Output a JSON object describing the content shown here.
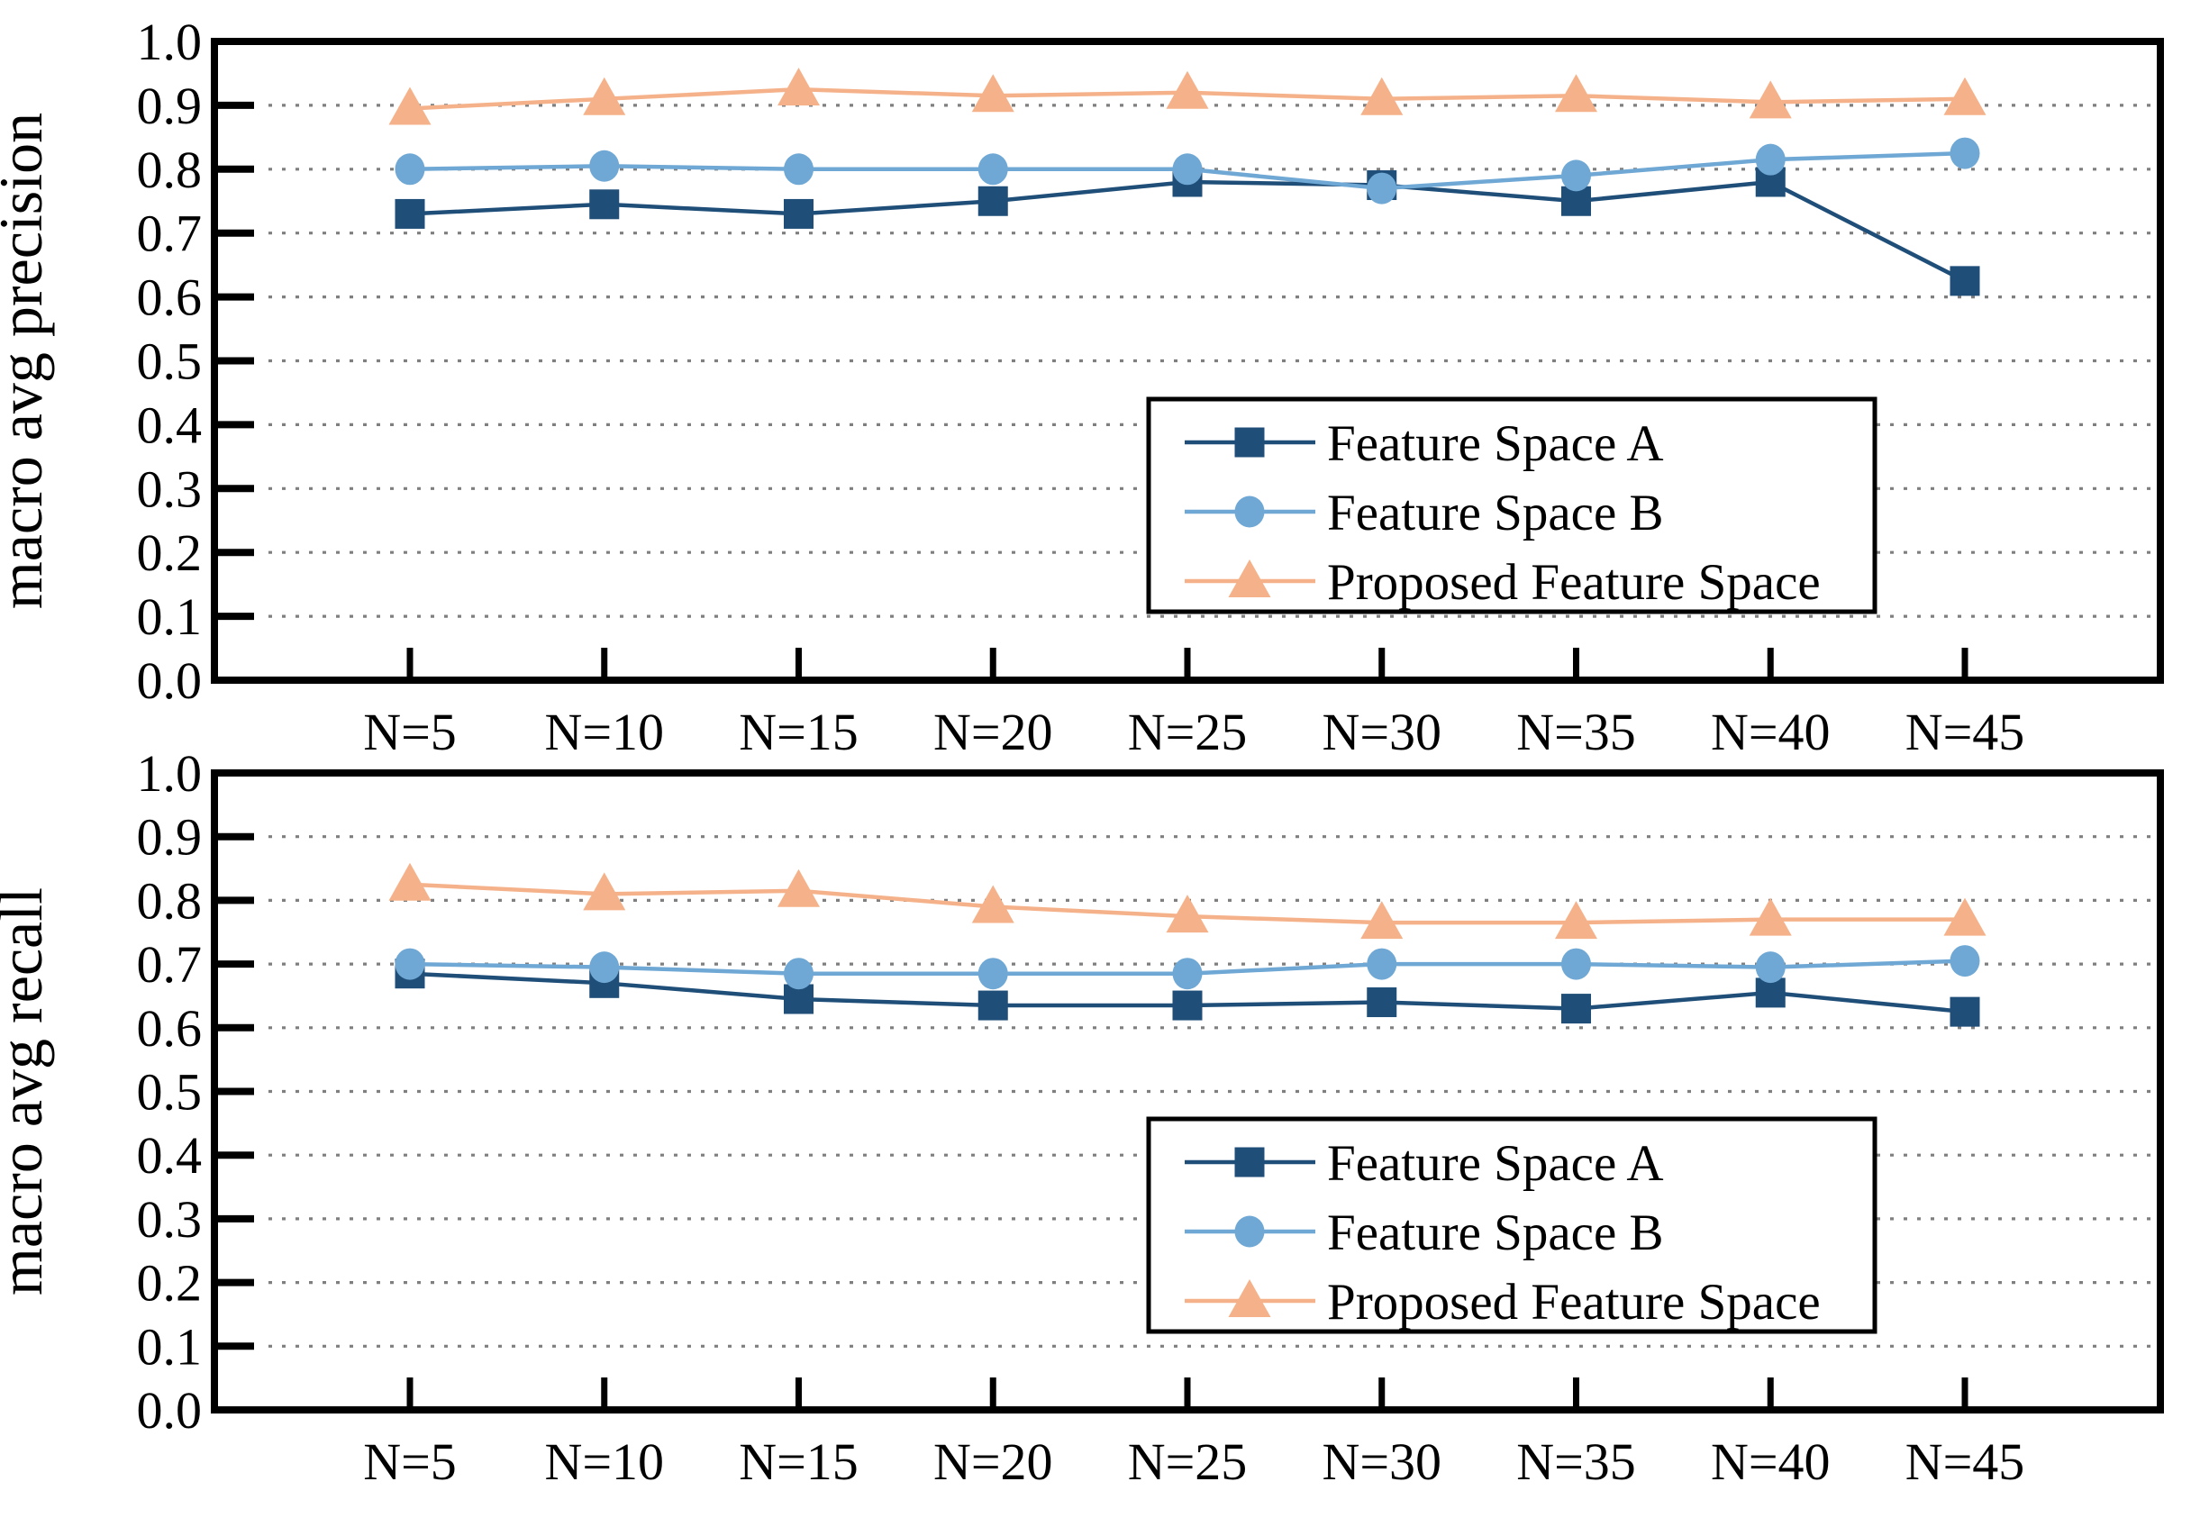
{
  "figure": {
    "background": "#ffffff",
    "grid_color": "#7f7f7f",
    "axis_color": "#000000"
  },
  "chart_data": [
    {
      "type": "line",
      "title": "",
      "xlabel": "",
      "ylabel": "macro avg precision",
      "categories": [
        "N=5",
        "N=10",
        "N=15",
        "N=20",
        "N=25",
        "N=30",
        "N=35",
        "N=40",
        "N=45"
      ],
      "ylim": [
        0.0,
        1.0
      ],
      "ytick_step": 0.1,
      "ytick_labels": [
        "0.0",
        "0.1",
        "0.2",
        "0.3",
        "0.4",
        "0.5",
        "0.6",
        "0.7",
        "0.8",
        "0.9",
        "1.0"
      ],
      "grid": "horizontal-dotted",
      "legend_position": "inside-lower-right",
      "series": [
        {
          "name": "Feature Space A",
          "marker": "square",
          "color": "#1F4E79",
          "values": [
            0.73,
            0.745,
            0.73,
            0.75,
            0.78,
            0.775,
            0.75,
            0.78,
            0.625
          ]
        },
        {
          "name": "Feature Space B",
          "marker": "circle",
          "color": "#6FA8D4",
          "values": [
            0.8,
            0.805,
            0.8,
            0.8,
            0.8,
            0.77,
            0.79,
            0.815,
            0.825
          ]
        },
        {
          "name": "Proposed Feature Space",
          "marker": "triangle",
          "color": "#F5B28A",
          "values": [
            0.895,
            0.91,
            0.925,
            0.915,
            0.92,
            0.91,
            0.915,
            0.905,
            0.91
          ]
        }
      ]
    },
    {
      "type": "line",
      "title": "",
      "xlabel": "",
      "ylabel": "macro avg recall",
      "categories": [
        "N=5",
        "N=10",
        "N=15",
        "N=20",
        "N=25",
        "N=30",
        "N=35",
        "N=40",
        "N=45"
      ],
      "ylim": [
        0.0,
        1.0
      ],
      "ytick_step": 0.1,
      "ytick_labels": [
        "0.0",
        "0.1",
        "0.2",
        "0.3",
        "0.4",
        "0.5",
        "0.6",
        "0.7",
        "0.8",
        "0.9",
        "1.0"
      ],
      "grid": "horizontal-dotted",
      "legend_position": "inside-lower-right",
      "series": [
        {
          "name": "Feature Space A",
          "marker": "square",
          "color": "#1F4E79",
          "values": [
            0.685,
            0.67,
            0.645,
            0.635,
            0.635,
            0.64,
            0.63,
            0.655,
            0.625
          ]
        },
        {
          "name": "Feature Space B",
          "marker": "circle",
          "color": "#6FA8D4",
          "values": [
            0.7,
            0.695,
            0.685,
            0.685,
            0.685,
            0.7,
            0.7,
            0.695,
            0.705
          ]
        },
        {
          "name": "Proposed Feature Space",
          "marker": "triangle",
          "color": "#F5B28A",
          "values": [
            0.825,
            0.81,
            0.815,
            0.79,
            0.775,
            0.765,
            0.765,
            0.77,
            0.77
          ]
        }
      ]
    }
  ]
}
